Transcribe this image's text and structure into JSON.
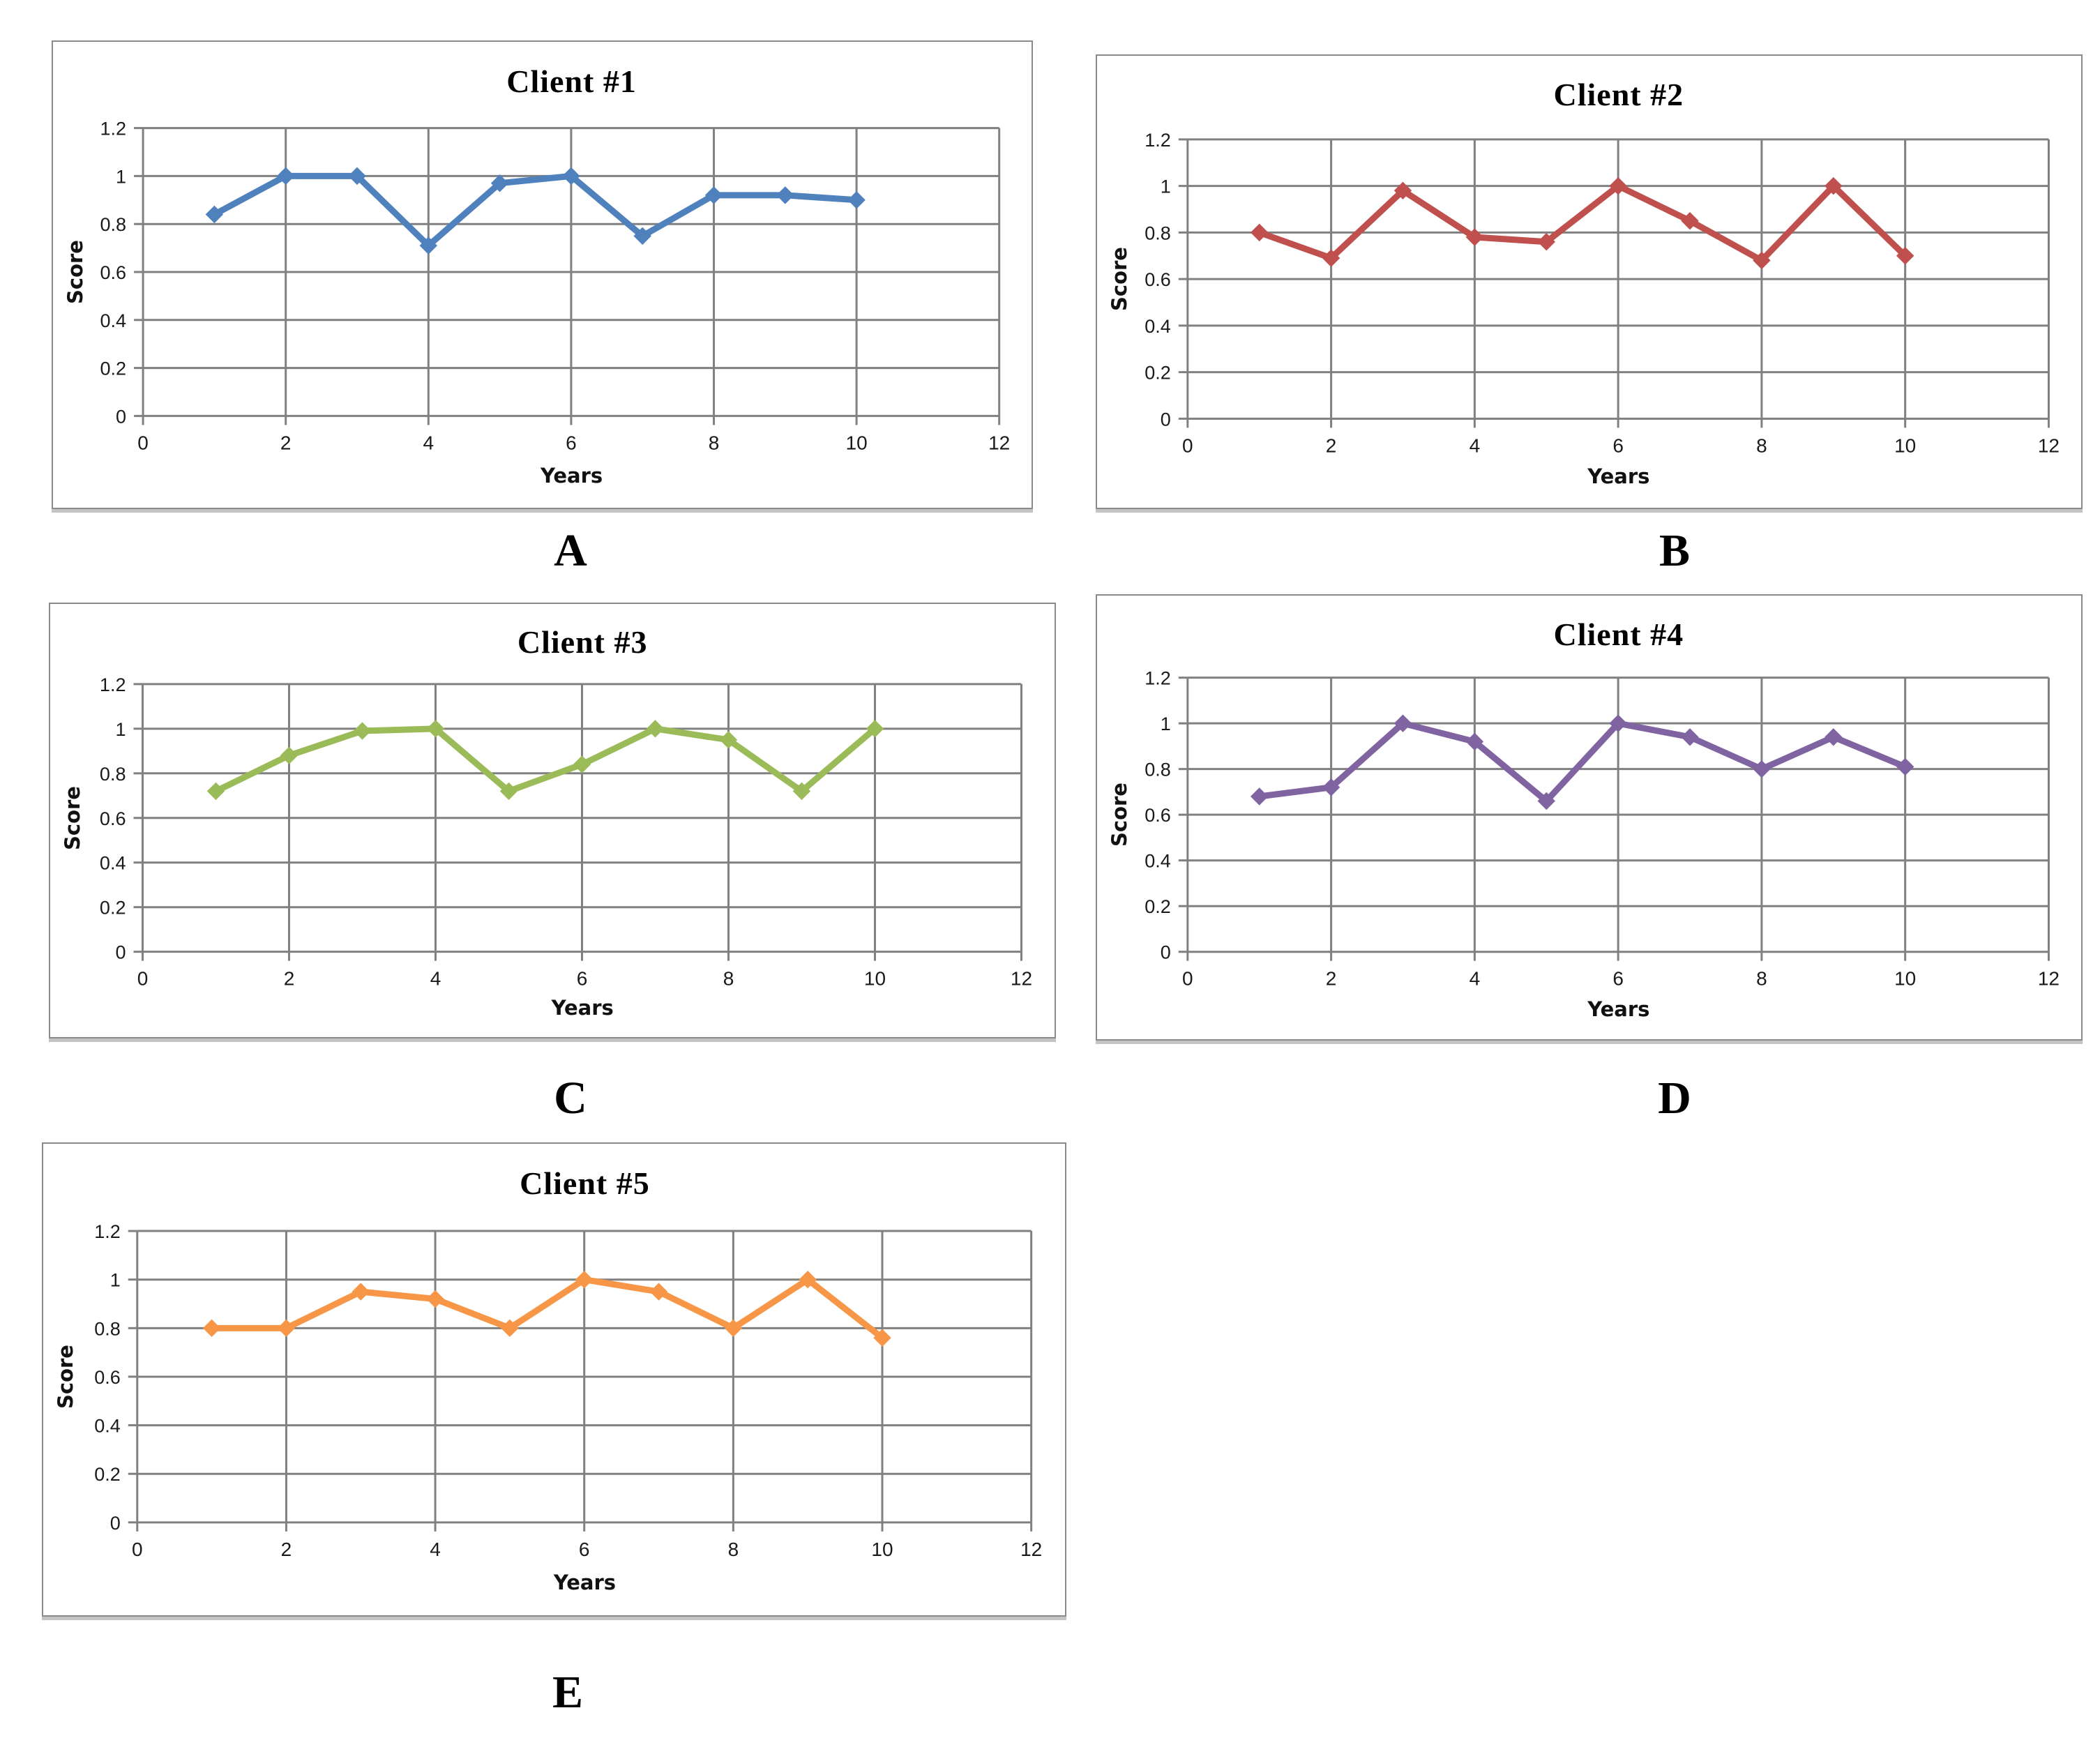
{
  "page": {
    "background": "#ffffff",
    "grid_color": "#808080",
    "tick_text_color": "#1a1a1a"
  },
  "chart_data": [
    {
      "type": "line",
      "title": "Client #1",
      "panel_label": "A",
      "color": "#4F81BD",
      "xlabel": "Years",
      "ylabel": "Score",
      "xlim": [
        0,
        12
      ],
      "ylim": [
        0,
        1.2
      ],
      "x_ticks": [
        0,
        2,
        4,
        6,
        8,
        10,
        12
      ],
      "y_ticks": [
        0,
        0.2,
        0.4,
        0.6,
        0.8,
        1,
        1.2
      ],
      "x": [
        1,
        2,
        3,
        4,
        5,
        6,
        7,
        8,
        9,
        10
      ],
      "values": [
        0.84,
        1.0,
        1.0,
        0.71,
        0.97,
        1.0,
        0.75,
        0.92,
        0.92,
        0.9
      ],
      "marker": "diamond",
      "grid": true,
      "legend": "none"
    },
    {
      "type": "line",
      "title": "Client #2",
      "panel_label": "B",
      "color": "#C0504D",
      "xlabel": "Years",
      "ylabel": "Score",
      "xlim": [
        0,
        12
      ],
      "ylim": [
        0,
        1.2
      ],
      "x_ticks": [
        0,
        2,
        4,
        6,
        8,
        10,
        12
      ],
      "y_ticks": [
        0,
        0.2,
        0.4,
        0.6,
        0.8,
        1,
        1.2
      ],
      "x": [
        1,
        2,
        3,
        4,
        5,
        6,
        7,
        8,
        9,
        10
      ],
      "values": [
        0.8,
        0.69,
        0.98,
        0.78,
        0.76,
        1.0,
        0.85,
        0.68,
        1.0,
        0.7
      ],
      "marker": "diamond",
      "grid": true,
      "legend": "none"
    },
    {
      "type": "line",
      "title": "Client #3",
      "panel_label": "C",
      "color": "#9BBB59",
      "xlabel": "Years",
      "ylabel": "Score",
      "xlim": [
        0,
        12
      ],
      "ylim": [
        0,
        1.2
      ],
      "x_ticks": [
        0,
        2,
        4,
        6,
        8,
        10,
        12
      ],
      "y_ticks": [
        0,
        0.2,
        0.4,
        0.6,
        0.8,
        1,
        1.2
      ],
      "x": [
        1,
        2,
        3,
        4,
        5,
        6,
        7,
        8,
        9,
        10
      ],
      "values": [
        0.72,
        0.88,
        0.99,
        1.0,
        0.72,
        0.84,
        1.0,
        0.95,
        0.72,
        1.0
      ],
      "marker": "diamond",
      "grid": true,
      "legend": "none"
    },
    {
      "type": "line",
      "title": "Client #4",
      "panel_label": "D",
      "color": "#8064A2",
      "xlabel": "Years",
      "ylabel": "Score",
      "xlim": [
        0,
        12
      ],
      "ylim": [
        0,
        1.2
      ],
      "x_ticks": [
        0,
        2,
        4,
        6,
        8,
        10,
        12
      ],
      "y_ticks": [
        0,
        0.2,
        0.4,
        0.6,
        0.8,
        1,
        1.2
      ],
      "x": [
        1,
        2,
        3,
        4,
        5,
        6,
        7,
        8,
        9,
        10
      ],
      "values": [
        0.68,
        0.72,
        1.0,
        0.92,
        0.66,
        1.0,
        0.94,
        0.8,
        0.94,
        0.81
      ],
      "marker": "diamond",
      "grid": true,
      "legend": "none"
    },
    {
      "type": "line",
      "title": "Client #5",
      "panel_label": "E",
      "color": "#F79646",
      "xlabel": "Years",
      "ylabel": "Score",
      "xlim": [
        0,
        12
      ],
      "ylim": [
        0,
        1.2
      ],
      "x_ticks": [
        0,
        2,
        4,
        6,
        8,
        10,
        12
      ],
      "y_ticks": [
        0,
        0.2,
        0.4,
        0.6,
        0.8,
        1,
        1.2
      ],
      "x": [
        1,
        2,
        3,
        4,
        5,
        6,
        7,
        8,
        9,
        10
      ],
      "values": [
        0.8,
        0.8,
        0.95,
        0.92,
        0.8,
        1.0,
        0.95,
        0.8,
        1.0,
        0.76
      ],
      "marker": "diamond",
      "grid": true,
      "legend": "none"
    }
  ]
}
